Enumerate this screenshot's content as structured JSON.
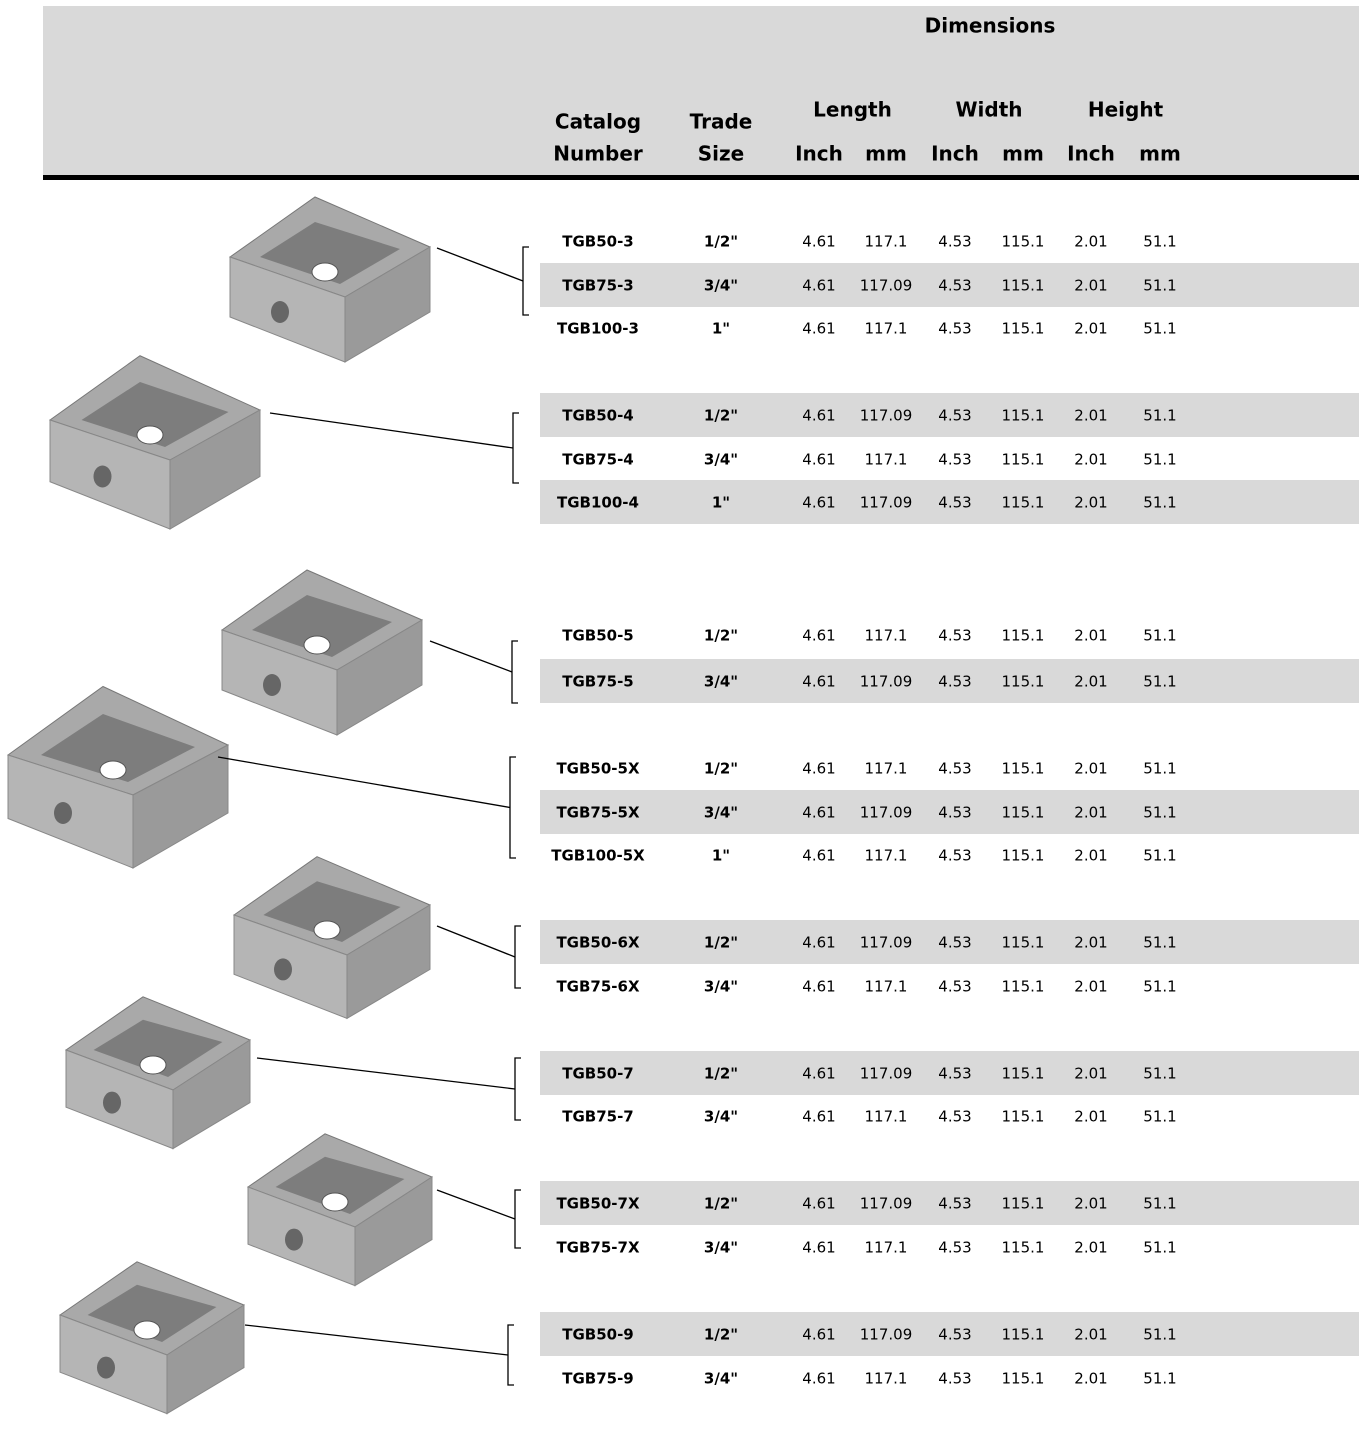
{
  "header": {
    "group_title": "Dimensions",
    "columns": [
      [
        "Catalog",
        "Number"
      ],
      [
        "Trade",
        "Size"
      ]
    ],
    "dimensions": [
      "Length",
      "Width",
      "Height"
    ],
    "units": [
      "Inch",
      "mm",
      "Inch",
      "mm",
      "Inch",
      "mm"
    ]
  },
  "table": {
    "rows": [
      [
        "TGB50-3",
        "1/2\"",
        "4.61",
        "117.1",
        "4.53",
        "115.1",
        "2.01",
        "51.1"
      ],
      [
        "TGB75-3",
        "3/4\"",
        "4.61",
        "117.09",
        "4.53",
        "115.1",
        "2.01",
        "51.1"
      ],
      [
        "TGB100-3",
        "1\"",
        "4.61",
        "117.1",
        "4.53",
        "115.1",
        "2.01",
        "51.1"
      ],
      [
        "TGB50-4",
        "1/2\"",
        "4.61",
        "117.09",
        "4.53",
        "115.1",
        "2.01",
        "51.1"
      ],
      [
        "TGB75-4",
        "3/4\"",
        "4.61",
        "117.1",
        "4.53",
        "115.1",
        "2.01",
        "51.1"
      ],
      [
        "TGB100-4",
        "1\"",
        "4.61",
        "117.09",
        "4.53",
        "115.1",
        "2.01",
        "51.1"
      ],
      [
        "TGB50-5",
        "1/2\"",
        "4.61",
        "117.1",
        "4.53",
        "115.1",
        "2.01",
        "51.1"
      ],
      [
        "TGB75-5",
        "3/4\"",
        "4.61",
        "117.09",
        "4.53",
        "115.1",
        "2.01",
        "51.1"
      ],
      [
        "TGB50-5X",
        "1/2\"",
        "4.61",
        "117.1",
        "4.53",
        "115.1",
        "2.01",
        "51.1"
      ],
      [
        "TGB75-5X",
        "3/4\"",
        "4.61",
        "117.09",
        "4.53",
        "115.1",
        "2.01",
        "51.1"
      ],
      [
        "TGB100-5X",
        "1\"",
        "4.61",
        "117.1",
        "4.53",
        "115.1",
        "2.01",
        "51.1"
      ],
      [
        "TGB50-6X",
        "1/2\"",
        "4.61",
        "117.09",
        "4.53",
        "115.1",
        "2.01",
        "51.1"
      ],
      [
        "TGB75-6X",
        "3/4\"",
        "4.61",
        "117.1",
        "4.53",
        "115.1",
        "2.01",
        "51.1"
      ],
      [
        "TGB50-7",
        "1/2\"",
        "4.61",
        "117.09",
        "4.53",
        "115.1",
        "2.01",
        "51.1"
      ],
      [
        "TGB75-7",
        "3/4\"",
        "4.61",
        "117.1",
        "4.53",
        "115.1",
        "2.01",
        "51.1"
      ],
      [
        "TGB50-7X",
        "1/2\"",
        "4.61",
        "117.09",
        "4.53",
        "115.1",
        "2.01",
        "51.1"
      ],
      [
        "TGB75-7X",
        "3/4\"",
        "4.61",
        "117.1",
        "4.53",
        "115.1",
        "2.01",
        "51.1"
      ],
      [
        "TGB50-9",
        "1/2\"",
        "4.61",
        "117.09",
        "4.53",
        "115.1",
        "2.01",
        "51.1"
      ],
      [
        "TGB75-9",
        "3/4\"",
        "4.61",
        "117.1",
        "4.53",
        "115.1",
        "2.01",
        "51.1"
      ]
    ]
  }
}
